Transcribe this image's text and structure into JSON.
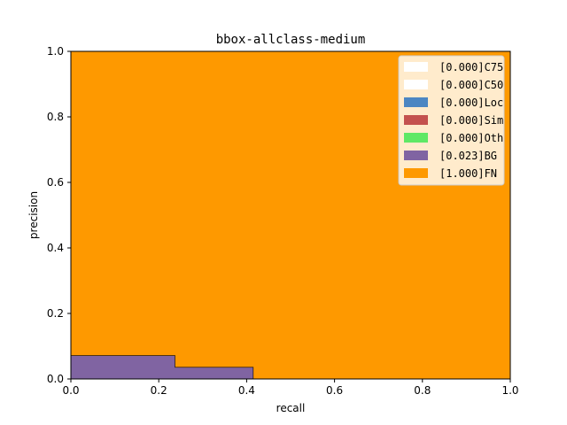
{
  "chart_data": {
    "type": "area",
    "title": "bbox-allclass-medium",
    "xlabel": "recall",
    "ylabel": "precision",
    "xlim": [
      0,
      1
    ],
    "ylim": [
      0,
      1
    ],
    "xticks": [
      "0.0",
      "0.2",
      "0.4",
      "0.6",
      "0.8",
      "1.0"
    ],
    "yticks": [
      "0.0",
      "0.2",
      "0.4",
      "0.6",
      "0.8",
      "1.0"
    ],
    "grid": false,
    "legend_position": "upper-right",
    "series": [
      {
        "name": "[0.000]C75",
        "color": "#ffffff",
        "x": [
          0,
          1
        ],
        "y": [
          0,
          0
        ]
      },
      {
        "name": "[0.000]C50",
        "color": "#ffffff",
        "x": [
          0,
          1
        ],
        "y": [
          0,
          0
        ]
      },
      {
        "name": "[0.000]Loc",
        "color": "#4c86c2",
        "x": [
          0,
          1
        ],
        "y": [
          0,
          0
        ]
      },
      {
        "name": "[0.000]Sim",
        "color": "#c4514e",
        "x": [
          0,
          1
        ],
        "y": [
          0,
          0
        ]
      },
      {
        "name": "[0.000]Oth",
        "color": "#5fe865",
        "x": [
          0,
          1
        ],
        "y": [
          0,
          0
        ]
      },
      {
        "name": "[0.023]BG",
        "color": "#8064a2",
        "x": [
          0,
          0.237,
          0.237,
          0.415,
          0.415,
          1.0
        ],
        "y": [
          0.0714,
          0.0714,
          0.0357,
          0.0357,
          0.0,
          0.0
        ]
      },
      {
        "name": "[1.000]FN",
        "color": "#fe9900",
        "x": [
          0,
          1
        ],
        "y": [
          1,
          1
        ]
      }
    ]
  }
}
